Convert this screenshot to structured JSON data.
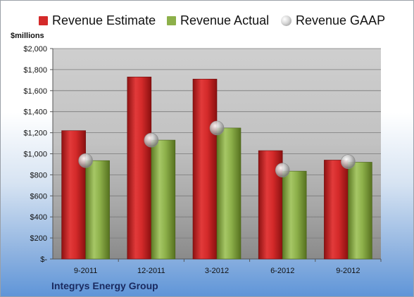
{
  "chart_data": {
    "type": "bar",
    "title": "Integrys Energy Group",
    "ylabel": "$millions",
    "xlabel": "",
    "categories": [
      "9-2011",
      "12-2011",
      "3-2012",
      "6-2012",
      "9-2012"
    ],
    "ylim": [
      0,
      2000
    ],
    "yticks": [
      0,
      200,
      400,
      600,
      800,
      1000,
      1200,
      1400,
      1600,
      1800,
      2000
    ],
    "ytick_labels": [
      "$-",
      "$200",
      "$400",
      "$600",
      "$800",
      "$1,000",
      "$1,200",
      "$1,400",
      "$1,600",
      "$1,800",
      "$2,000"
    ],
    "grid": true,
    "legend_position": "top",
    "series": [
      {
        "name": "Revenue Estimate",
        "kind": "bar",
        "color": "#d42a2a",
        "values": [
          1220,
          1730,
          1710,
          1030,
          940
        ]
      },
      {
        "name": "Revenue Actual",
        "kind": "bar",
        "color": "#8db04a",
        "values": [
          935,
          1130,
          1245,
          835,
          920
        ]
      },
      {
        "name": "Revenue GAAP",
        "kind": "marker",
        "color": "#b0b0b0",
        "values": [
          935,
          1130,
          1245,
          845,
          925
        ]
      }
    ]
  }
}
